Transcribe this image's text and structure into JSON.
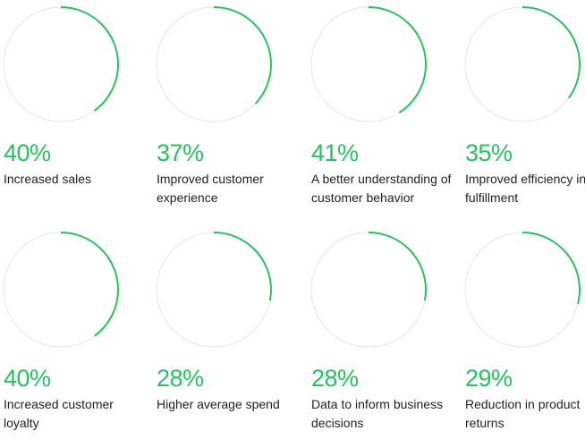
{
  "accent_color": "#22c55e",
  "track_color": "#e7e7e7",
  "stats": [
    {
      "value_text": "40%",
      "percent": 40,
      "label": "Increased sales"
    },
    {
      "value_text": "37%",
      "percent": 37,
      "label": "Improved customer experience"
    },
    {
      "value_text": "41%",
      "percent": 41,
      "label": "A better understanding of customer behavior"
    },
    {
      "value_text": "35%",
      "percent": 35,
      "label": "Improved efficiency in fulfillment"
    },
    {
      "value_text": "40%",
      "percent": 40,
      "label": "Increased customer loyalty"
    },
    {
      "value_text": "28%",
      "percent": 28,
      "label": "Higher average spend"
    },
    {
      "value_text": "28%",
      "percent": 28,
      "label": "Data to inform business decisions"
    },
    {
      "value_text": "29%",
      "percent": 29,
      "label": "Reduction in product returns"
    }
  ]
}
